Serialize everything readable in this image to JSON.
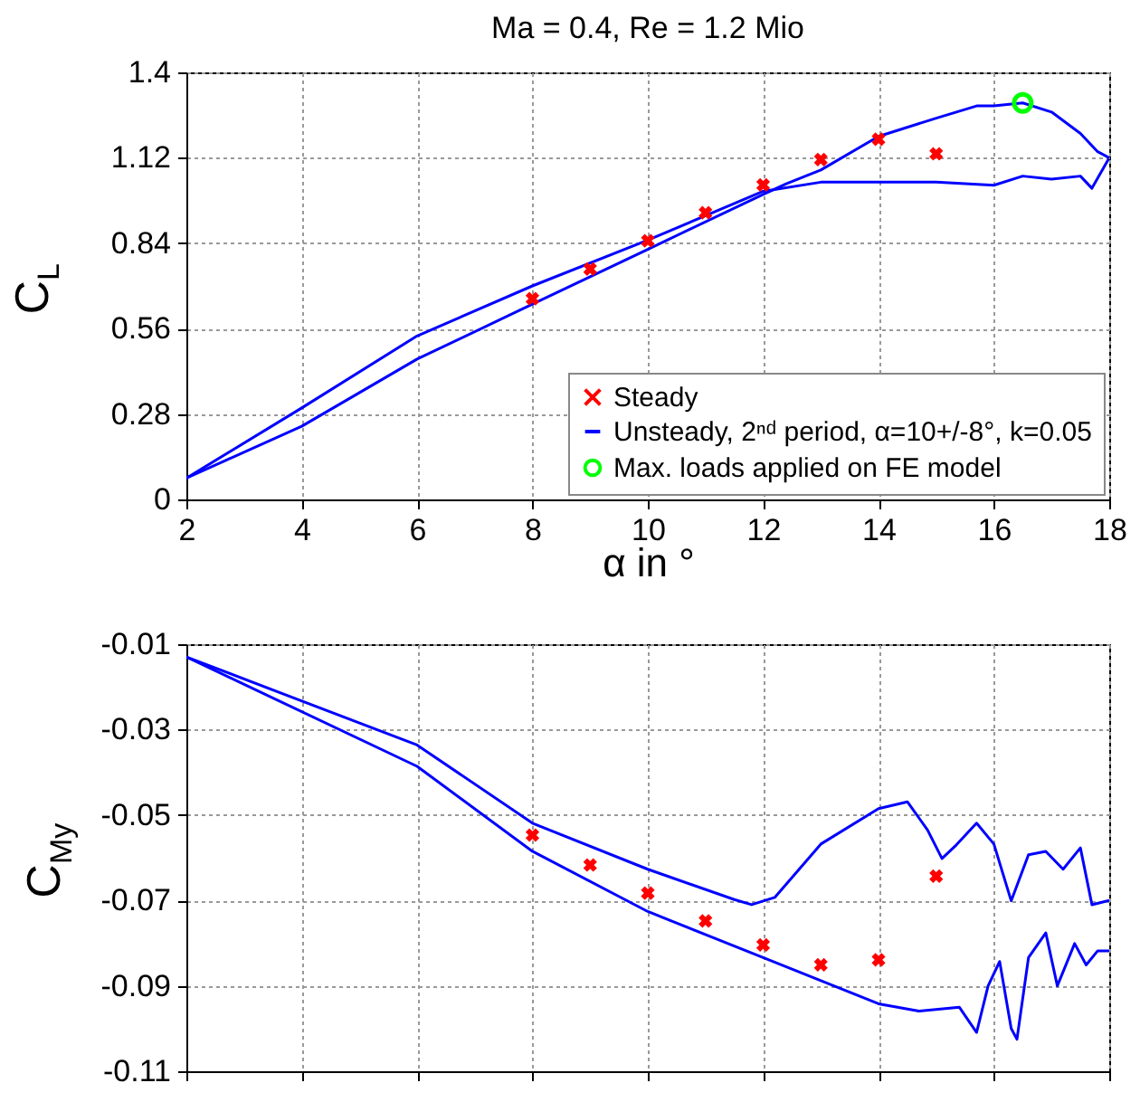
{
  "chart_data": [
    {
      "type": "line",
      "title": "Ma = 0.4, Re = 1.2 Mio",
      "xlabel": "α in °",
      "ylabel": "C$_{L}$",
      "xlim": [
        2,
        18
      ],
      "xticks": [
        2,
        4,
        6,
        8,
        10,
        12,
        14,
        16,
        18
      ],
      "ylim": [
        0,
        1.4
      ],
      "yticks": [
        0,
        0.28,
        0.56,
        0.84,
        1.12,
        1.4
      ],
      "grid": true,
      "legend": "bottom right",
      "series": [
        {
          "name": "Steady",
          "type": "scatter",
          "marker": "cross",
          "color": "#ff0000",
          "x": [
            8,
            9,
            10,
            11,
            12,
            13,
            14,
            15
          ],
          "values": [
            0.658,
            0.755,
            0.848,
            0.94,
            1.031,
            1.114,
            1.181,
            1.133
          ]
        },
        {
          "name": "Unsteady, 2ⁿᵈ period, α=10+/-8°, k=0.05",
          "color": "#0000ff",
          "x": [
            2,
            4,
            6,
            8,
            10,
            12,
            12.4,
            13,
            14,
            15,
            15.7,
            16,
            16.5,
            17,
            17.5,
            17.8,
            18
          ],
          "values": [
            0.07,
            0.24,
            0.46,
            0.64,
            0.82,
            1.0,
            1.035,
            1.08,
            1.19,
            1.25,
            1.29,
            1.29,
            1.3,
            1.27,
            1.2,
            1.14,
            1.12
          ]
        },
        {
          "color": "#0000ff",
          "x": [
            2,
            4,
            6,
            8,
            10,
            12,
            13,
            14,
            15,
            16,
            16.5,
            17,
            17.5,
            17.7,
            18
          ],
          "values": [
            0.07,
            0.3,
            0.536,
            0.7,
            0.85,
            1.01,
            1.04,
            1.04,
            1.04,
            1.03,
            1.06,
            1.05,
            1.06,
            1.02,
            1.12
          ]
        },
        {
          "name": "Max. loads applied on FE model",
          "type": "scatter",
          "marker": "circle",
          "color": "#00ff00",
          "x": [
            16.5
          ],
          "values": [
            1.3
          ]
        }
      ]
    },
    {
      "type": "line",
      "ylabel": "C$_{My}$",
      "xlim": [
        2,
        18
      ],
      "xticks": [
        2,
        4,
        6,
        8,
        10,
        12,
        14,
        16,
        18
      ],
      "ylim": [
        -0.11,
        -0.01
      ],
      "yticks": [
        -0.11,
        -0.09,
        -0.07,
        -0.05,
        -0.03,
        -0.01
      ],
      "grid": true,
      "tick_labels": "y",
      "series": [
        {
          "type": "scatter",
          "marker": "cross",
          "color": "#ff0000",
          "x": [
            8,
            9,
            10,
            11,
            12,
            13,
            14,
            15
          ],
          "values": [
            -0.0547,
            -0.0617,
            -0.0683,
            -0.0748,
            -0.0804,
            -0.0851,
            -0.0839,
            -0.0643
          ]
        },
        {
          "color": "#0000ff",
          "x": [
            2,
            6,
            8,
            10,
            11.5,
            11.8,
            12.2,
            13,
            14,
            14.5,
            14.85,
            15.1,
            15.35,
            15.7,
            16,
            16.3,
            16.6,
            16.9,
            17.2,
            17.5,
            17.7,
            18
          ],
          "values": [
            -0.013,
            -0.0336,
            -0.0519,
            -0.0627,
            -0.0698,
            -0.071,
            -0.0693,
            -0.0568,
            -0.0485,
            -0.0469,
            -0.0535,
            -0.0602,
            -0.057,
            -0.0519,
            -0.0568,
            -0.0701,
            -0.0593,
            -0.0585,
            -0.0627,
            -0.0577,
            -0.071,
            -0.07
          ]
        },
        {
          "color": "#0000ff",
          "x": [
            2,
            6,
            8,
            10,
            12,
            14,
            14.7,
            15.4,
            15.7,
            15.9,
            16.1,
            16.3,
            16.4,
            16.6,
            16.9,
            17.1,
            17.4,
            17.6,
            17.8,
            18
          ],
          "values": [
            -0.013,
            -0.0386,
            -0.0585,
            -0.0726,
            -0.0834,
            -0.0942,
            -0.0959,
            -0.095,
            -0.1009,
            -0.09,
            -0.0843,
            -0.1,
            -0.1025,
            -0.0834,
            -0.0776,
            -0.09,
            -0.0801,
            -0.0851,
            -0.0818,
            -0.0818
          ]
        }
      ]
    }
  ]
}
